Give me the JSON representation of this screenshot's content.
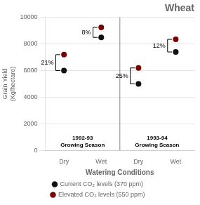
{
  "chart_data": {
    "type": "scatter",
    "title": "Wheat",
    "x_label": "Watering Conditions",
    "y_label": "Grain Yield\n(Kg/hectare)",
    "categories": [
      "Dry",
      "Wet",
      "Dry",
      "Wet"
    ],
    "groups": [
      "1992-93\nGrowing Season",
      "1993-94\nGrowing Season"
    ],
    "series": [
      {
        "name": "Current CO₂ levels (370 ppm)",
        "color": "#111111",
        "values": [
          6000,
          8500,
          5000,
          7400
        ]
      },
      {
        "name": "Elevated CO₂ levels (550 ppm)",
        "color": "#7B0000",
        "values": [
          7200,
          9250,
          6200,
          8350
        ]
      }
    ],
    "annotations": [
      "21%",
      "8%",
      "25%",
      "12%"
    ],
    "marker": "circle",
    "ylim": [
      0,
      10000
    ],
    "yticks": [
      0,
      2000,
      4000,
      6000,
      8000,
      10000
    ],
    "grid": true,
    "legend": "bottom"
  }
}
